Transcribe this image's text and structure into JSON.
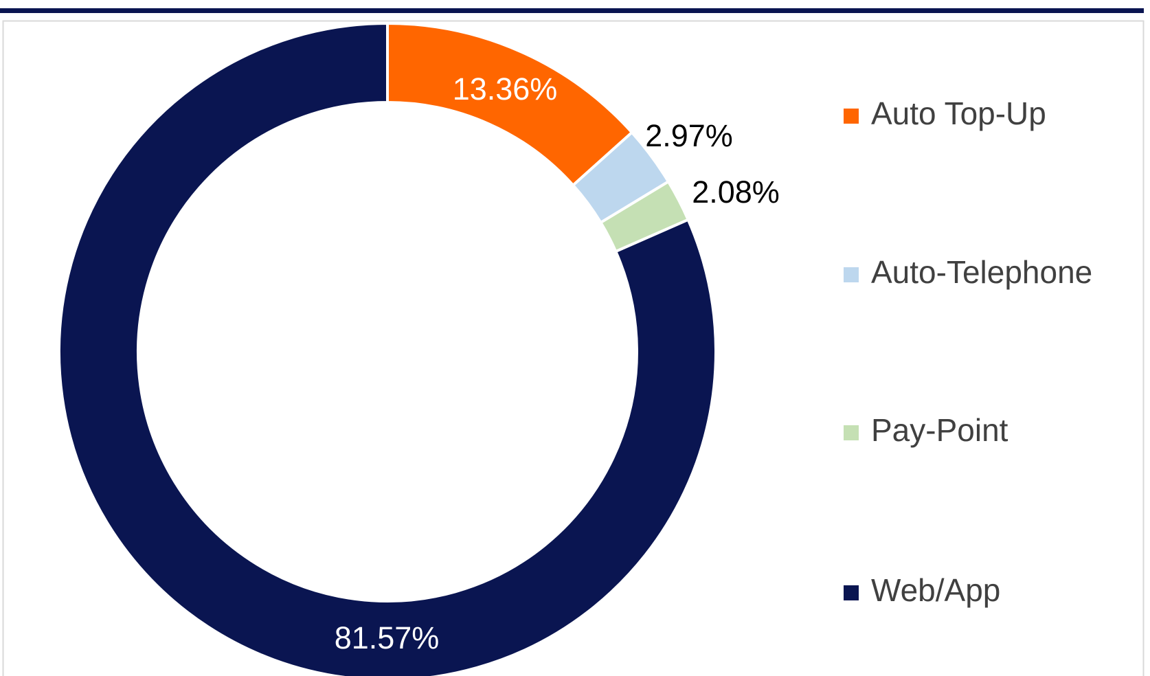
{
  "chart_data": {
    "type": "donut",
    "categories": [
      "Auto Top-Up",
      "Auto-Telephone",
      "Pay-Point",
      "Web/App"
    ],
    "values": [
      13.36,
      2.97,
      2.08,
      81.57
    ],
    "value_labels": [
      "13.36%",
      "2.97%",
      "2.08%",
      "81.57%"
    ],
    "colors": [
      "#ff6600",
      "#bdd7ee",
      "#c5e0b4",
      "#0a1551"
    ],
    "legend": "right"
  }
}
